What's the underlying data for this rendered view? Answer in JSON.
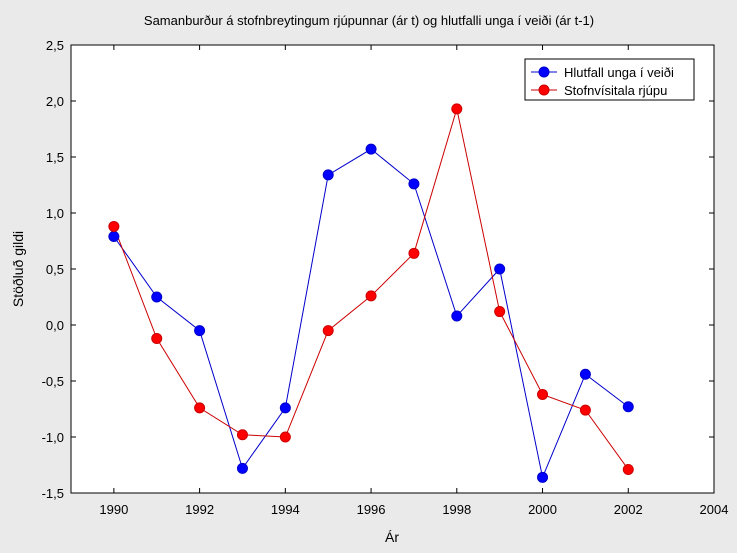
{
  "chart_data": {
    "type": "line",
    "title": "Samanburður á stofnbreytingum rjúpunnar (ár t) og hlutfalli unga í veiði (ár t-1)",
    "xlabel": "Ár",
    "ylabel": "Stöðluð gildi",
    "xlim": [
      1989,
      2004
    ],
    "ylim": [
      -1.5,
      2.5
    ],
    "x_ticks": [
      1990,
      1992,
      1994,
      1996,
      1998,
      2000,
      2002,
      2004
    ],
    "y_ticks": [
      -1.5,
      -1.0,
      -0.5,
      0.0,
      0.5,
      1.0,
      1.5,
      2.0,
      2.5
    ],
    "y_tick_labels": [
      "-1,5",
      "-1,0",
      "-0,5",
      "0,0",
      "0,5",
      "1,0",
      "1,5",
      "2,0",
      "2,5"
    ],
    "x_tick_labels": [
      "1990",
      "1992",
      "1994",
      "1996",
      "1998",
      "2000",
      "2002",
      "2004"
    ],
    "grid": false,
    "legend_position": "top-right",
    "series": [
      {
        "name": "Hlutfall unga í veiði",
        "color": "#0000cc",
        "marker_color": "#0000ff",
        "x": [
          1990,
          1991,
          1992,
          1993,
          1994,
          1995,
          1996,
          1997,
          1998,
          1999,
          2000,
          2001,
          2002
        ],
        "values": [
          0.79,
          0.25,
          -0.05,
          -1.28,
          -0.74,
          1.34,
          1.57,
          1.26,
          0.08,
          0.5,
          -1.36,
          -0.44,
          -0.73
        ]
      },
      {
        "name": "Stofnvísitala rjúpu",
        "color": "#cc0000",
        "marker_color": "#ff0000",
        "x": [
          1990,
          1991,
          1992,
          1993,
          1994,
          1995,
          1996,
          1997,
          1998,
          1999,
          2000,
          2001,
          2002
        ],
        "values": [
          0.88,
          -0.12,
          -0.74,
          -0.98,
          -1.0,
          -0.05,
          0.26,
          0.64,
          1.93,
          0.12,
          -0.62,
          -0.76,
          -1.29
        ]
      }
    ]
  }
}
